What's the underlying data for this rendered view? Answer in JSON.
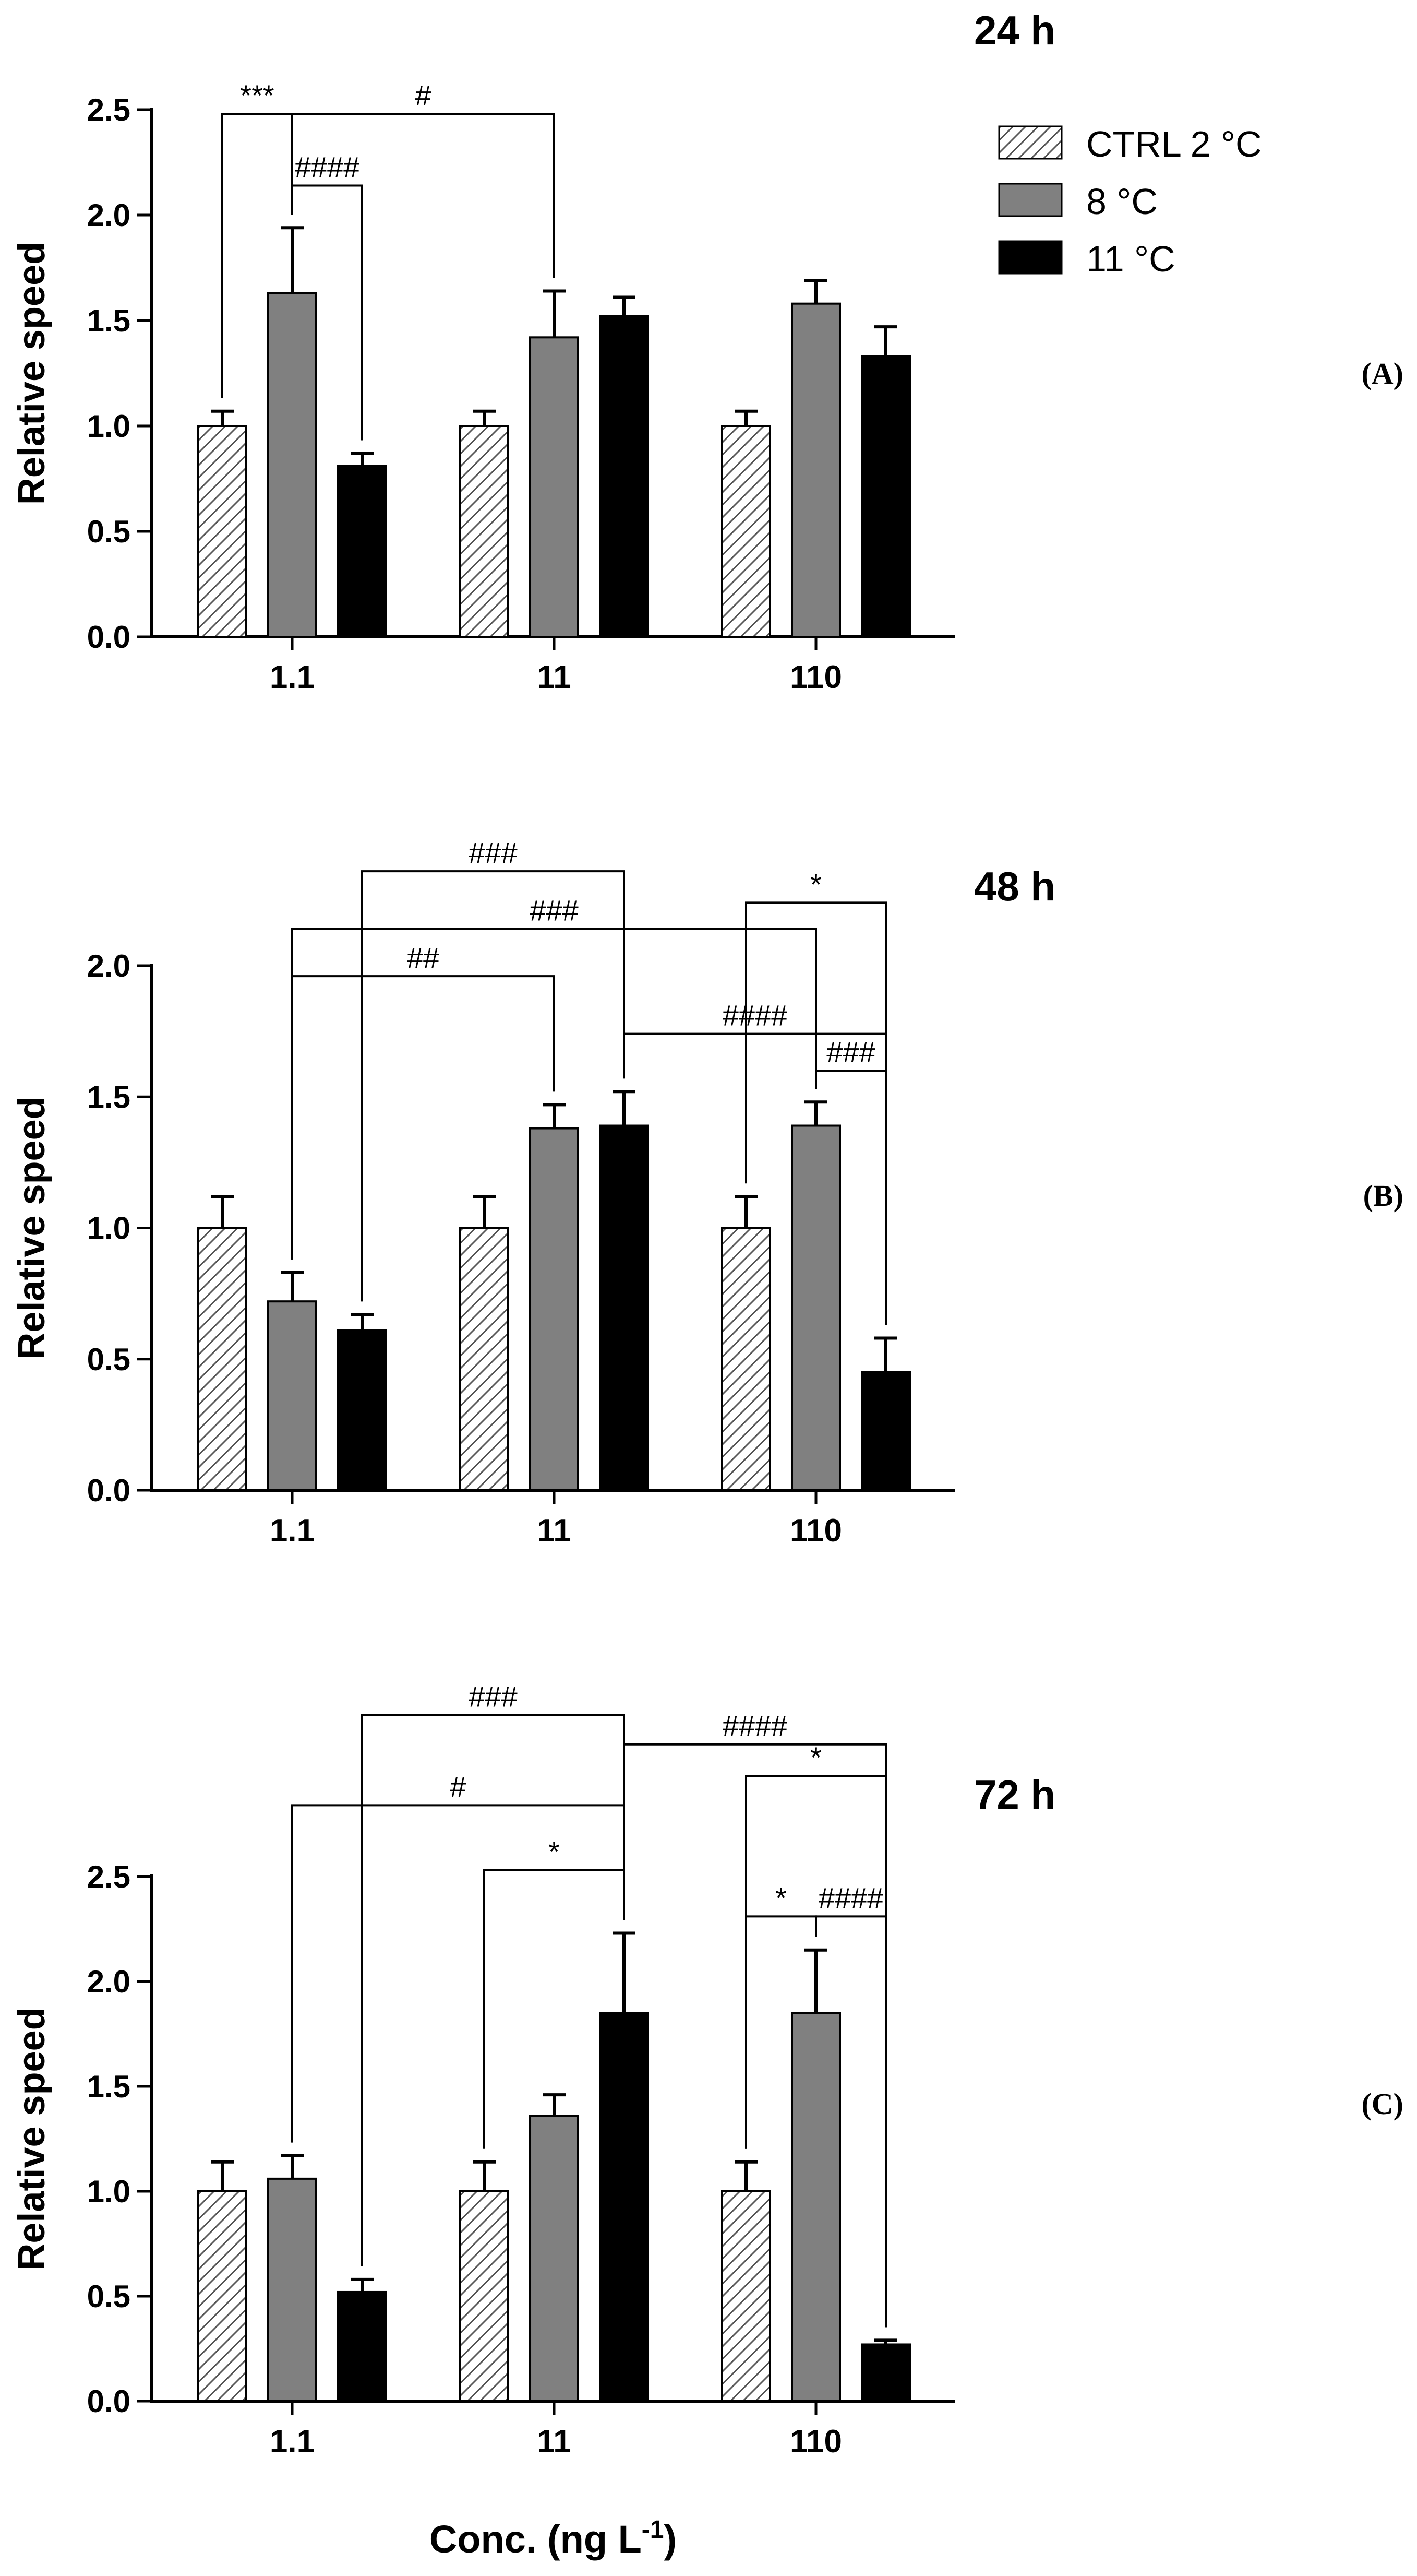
{
  "figure": {
    "xlabel": "Conc. (ng L",
    "xlabel_sup": "-1",
    "xlabel_end": ")"
  },
  "legend": [
    {
      "label": "CTRL 2 °C",
      "style": "hatch"
    },
    {
      "label": "8 °C",
      "style": "gray"
    },
    {
      "label": "11 °C",
      "style": "black"
    }
  ],
  "colors": {
    "gray": "#808080",
    "black": "#000000",
    "hatch_bg": "#ffffff"
  },
  "chart_data": [
    {
      "type": "bar",
      "title": "24 h",
      "panel_label": "(A)",
      "ylabel": "Relative speed",
      "ylim": [
        0,
        2.5
      ],
      "yticks": [
        "0.0",
        "0.5",
        "1.0",
        "1.5",
        "2.0",
        "2.5"
      ],
      "categories": [
        "1.1",
        "11",
        "110"
      ],
      "series": [
        {
          "name": "CTRL 2 °C",
          "values": [
            1.0,
            1.0,
            1.0
          ],
          "errors": [
            0.07,
            0.07,
            0.07
          ]
        },
        {
          "name": "8 °C",
          "values": [
            1.63,
            1.42,
            1.58
          ],
          "errors": [
            0.31,
            0.22,
            0.11
          ]
        },
        {
          "name": "11 °C",
          "values": [
            0.81,
            1.52,
            1.33
          ],
          "errors": [
            0.06,
            0.09,
            0.14
          ]
        }
      ],
      "significance": [
        {
          "label": "***",
          "from": [
            0,
            0
          ],
          "to": [
            0,
            1
          ],
          "level": 2.48
        },
        {
          "label": "#",
          "from": [
            0,
            1
          ],
          "to": [
            1,
            1
          ],
          "level": 2.48
        },
        {
          "label": "####",
          "from": [
            0,
            1
          ],
          "to": [
            0,
            2
          ],
          "level": 2.14
        }
      ]
    },
    {
      "type": "bar",
      "title": "48 h",
      "panel_label": "(B)",
      "ylabel": "Relative speed",
      "ylim": [
        0,
        2.0
      ],
      "yticks": [
        "0.0",
        "0.5",
        "1.0",
        "1.5",
        "2.0"
      ],
      "categories": [
        "1.1",
        "11",
        "110"
      ],
      "series": [
        {
          "name": "CTRL 2 °C",
          "values": [
            1.0,
            1.0,
            1.0
          ],
          "errors": [
            0.12,
            0.12,
            0.12
          ]
        },
        {
          "name": "8 °C",
          "values": [
            0.72,
            1.38,
            1.39
          ],
          "errors": [
            0.11,
            0.09,
            0.09
          ]
        },
        {
          "name": "11 °C",
          "values": [
            0.61,
            1.39,
            0.45
          ],
          "errors": [
            0.06,
            0.13,
            0.13
          ]
        }
      ],
      "significance": [
        {
          "label": "###",
          "from": [
            0,
            2
          ],
          "to": [
            1,
            2
          ],
          "level": 2.36
        },
        {
          "label": "*",
          "from": [
            2,
            0
          ],
          "to": [
            2,
            2
          ],
          "level": 2.24
        },
        {
          "label": "###",
          "from": [
            0,
            1
          ],
          "to": [
            2,
            1
          ],
          "level": 2.14
        },
        {
          "label": "##",
          "from": [
            0,
            1
          ],
          "to": [
            1,
            1
          ],
          "level": 1.96
        },
        {
          "label": "####",
          "from": [
            1,
            2
          ],
          "to": [
            2,
            2
          ],
          "level": 1.74
        },
        {
          "label": "###",
          "from": [
            2,
            1
          ],
          "to": [
            2,
            2
          ],
          "level": 1.6
        }
      ]
    },
    {
      "type": "bar",
      "title": "72 h",
      "panel_label": "(C)",
      "ylabel": "Relative speed",
      "ylim": [
        0,
        2.5
      ],
      "yticks": [
        "0.0",
        "0.5",
        "1.0",
        "1.5",
        "2.0",
        "2.5"
      ],
      "categories": [
        "1.1",
        "11",
        "110"
      ],
      "series": [
        {
          "name": "CTRL 2 °C",
          "values": [
            1.0,
            1.0,
            1.0
          ],
          "errors": [
            0.14,
            0.14,
            0.14
          ]
        },
        {
          "name": "8 °C",
          "values": [
            1.06,
            1.36,
            1.85
          ],
          "errors": [
            0.11,
            0.1,
            0.3
          ]
        },
        {
          "name": "11 °C",
          "values": [
            0.52,
            1.85,
            0.27
          ],
          "errors": [
            0.06,
            0.38,
            0.02
          ]
        }
      ],
      "significance": [
        {
          "label": "###",
          "from": [
            0,
            2
          ],
          "to": [
            1,
            2
          ],
          "level": 3.27
        },
        {
          "label": "####",
          "from": [
            1,
            2
          ],
          "to": [
            2,
            2
          ],
          "level": 3.13
        },
        {
          "label": "*",
          "from": [
            2,
            0
          ],
          "to": [
            2,
            2
          ],
          "level": 2.98
        },
        {
          "label": "#",
          "from": [
            0,
            1
          ],
          "to": [
            1,
            2
          ],
          "level": 2.84
        },
        {
          "label": "*",
          "from": [
            1,
            0
          ],
          "to": [
            1,
            2
          ],
          "level": 2.53
        },
        {
          "label": "*",
          "from": [
            2,
            0
          ],
          "to": [
            2,
            1
          ],
          "level": 2.31
        },
        {
          "label": "####",
          "from": [
            2,
            1
          ],
          "to": [
            2,
            2
          ],
          "level": 2.31
        }
      ]
    }
  ]
}
